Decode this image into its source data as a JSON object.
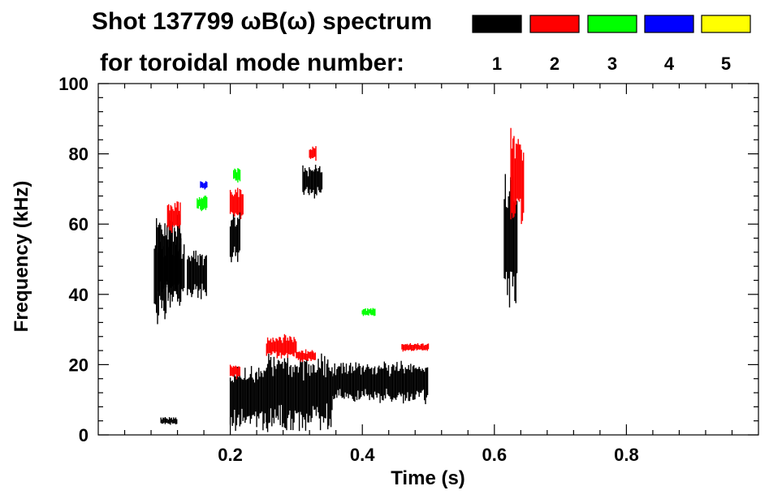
{
  "title": {
    "line1": "Shot 137799 ωB(ω) spectrum",
    "line2": "for toroidal mode number:"
  },
  "legend": [
    {
      "label": "1",
      "color": "#000000"
    },
    {
      "label": "2",
      "color": "#ff0000"
    },
    {
      "label": "3",
      "color": "#00ff00"
    },
    {
      "label": "4",
      "color": "#0000ff"
    },
    {
      "label": "5",
      "color": "#ffff00"
    }
  ],
  "chart_data": {
    "type": "heatmap",
    "title": "Shot 137799 ωB(ω) spectrum for toroidal mode number",
    "xlabel": "Time (s)",
    "ylabel": "Frequency (kHz)",
    "xlim": [
      0.0,
      1.0
    ],
    "ylim": [
      0,
      100
    ],
    "xticks": [
      0.2,
      0.4,
      0.6,
      0.8
    ],
    "xtick_labels": [
      "0.2",
      "0.4",
      "0.6",
      "0.8"
    ],
    "yticks": [
      0,
      20,
      40,
      60,
      80,
      100
    ],
    "ytick_labels": [
      "0",
      "20",
      "40",
      "60",
      "80",
      "100"
    ],
    "series": [
      {
        "name": "n=1",
        "color": "#000000",
        "features": [
          {
            "t": [
              0.085,
              0.125
            ],
            "f": [
              35,
              62
            ]
          },
          {
            "t": [
              0.09,
              0.13
            ],
            "f": [
              40,
              55
            ]
          },
          {
            "t": [
              0.135,
              0.165
            ],
            "f": [
              40,
              52
            ]
          },
          {
            "t": [
              0.095,
              0.12
            ],
            "f": [
              3,
              5
            ]
          },
          {
            "t": [
              0.2,
              0.255
            ],
            "f": [
              3,
              18
            ]
          },
          {
            "t": [
              0.255,
              0.355
            ],
            "f": [
              3,
              22
            ]
          },
          {
            "t": [
              0.355,
              0.5
            ],
            "f": [
              10,
              20
            ]
          },
          {
            "t": [
              0.2,
              0.215
            ],
            "f": [
              50,
              63
            ]
          },
          {
            "t": [
              0.31,
              0.34
            ],
            "f": [
              68,
              76
            ]
          },
          {
            "t": [
              0.615,
              0.635
            ],
            "f": [
              40,
              72
            ]
          }
        ]
      },
      {
        "name": "n=2",
        "color": "#ff0000",
        "features": [
          {
            "t": [
              0.105,
              0.125
            ],
            "f": [
              58,
              66
            ]
          },
          {
            "t": [
              0.2,
              0.215
            ],
            "f": [
              16,
              20
            ]
          },
          {
            "t": [
              0.2,
              0.22
            ],
            "f": [
              62,
              70
            ]
          },
          {
            "t": [
              0.255,
              0.3
            ],
            "f": [
              22,
              28
            ]
          },
          {
            "t": [
              0.3,
              0.33
            ],
            "f": [
              21,
              24
            ]
          },
          {
            "t": [
              0.32,
              0.33
            ],
            "f": [
              78,
              82
            ]
          },
          {
            "t": [
              0.46,
              0.5
            ],
            "f": [
              24,
              26
            ]
          },
          {
            "t": [
              0.625,
              0.645
            ],
            "f": [
              60,
              85
            ]
          }
        ]
      },
      {
        "name": "n=3",
        "color": "#00ff00",
        "features": [
          {
            "t": [
              0.15,
              0.165
            ],
            "f": [
              64,
              68
            ]
          },
          {
            "t": [
              0.205,
              0.215
            ],
            "f": [
              72,
              76
            ]
          },
          {
            "t": [
              0.4,
              0.42
            ],
            "f": [
              34,
              36
            ]
          }
        ]
      },
      {
        "name": "n=4",
        "color": "#0000ff",
        "features": [
          {
            "t": [
              0.155,
              0.165
            ],
            "f": [
              70,
              72
            ]
          }
        ]
      },
      {
        "name": "n=5",
        "color": "#ffff00",
        "features": []
      }
    ]
  }
}
